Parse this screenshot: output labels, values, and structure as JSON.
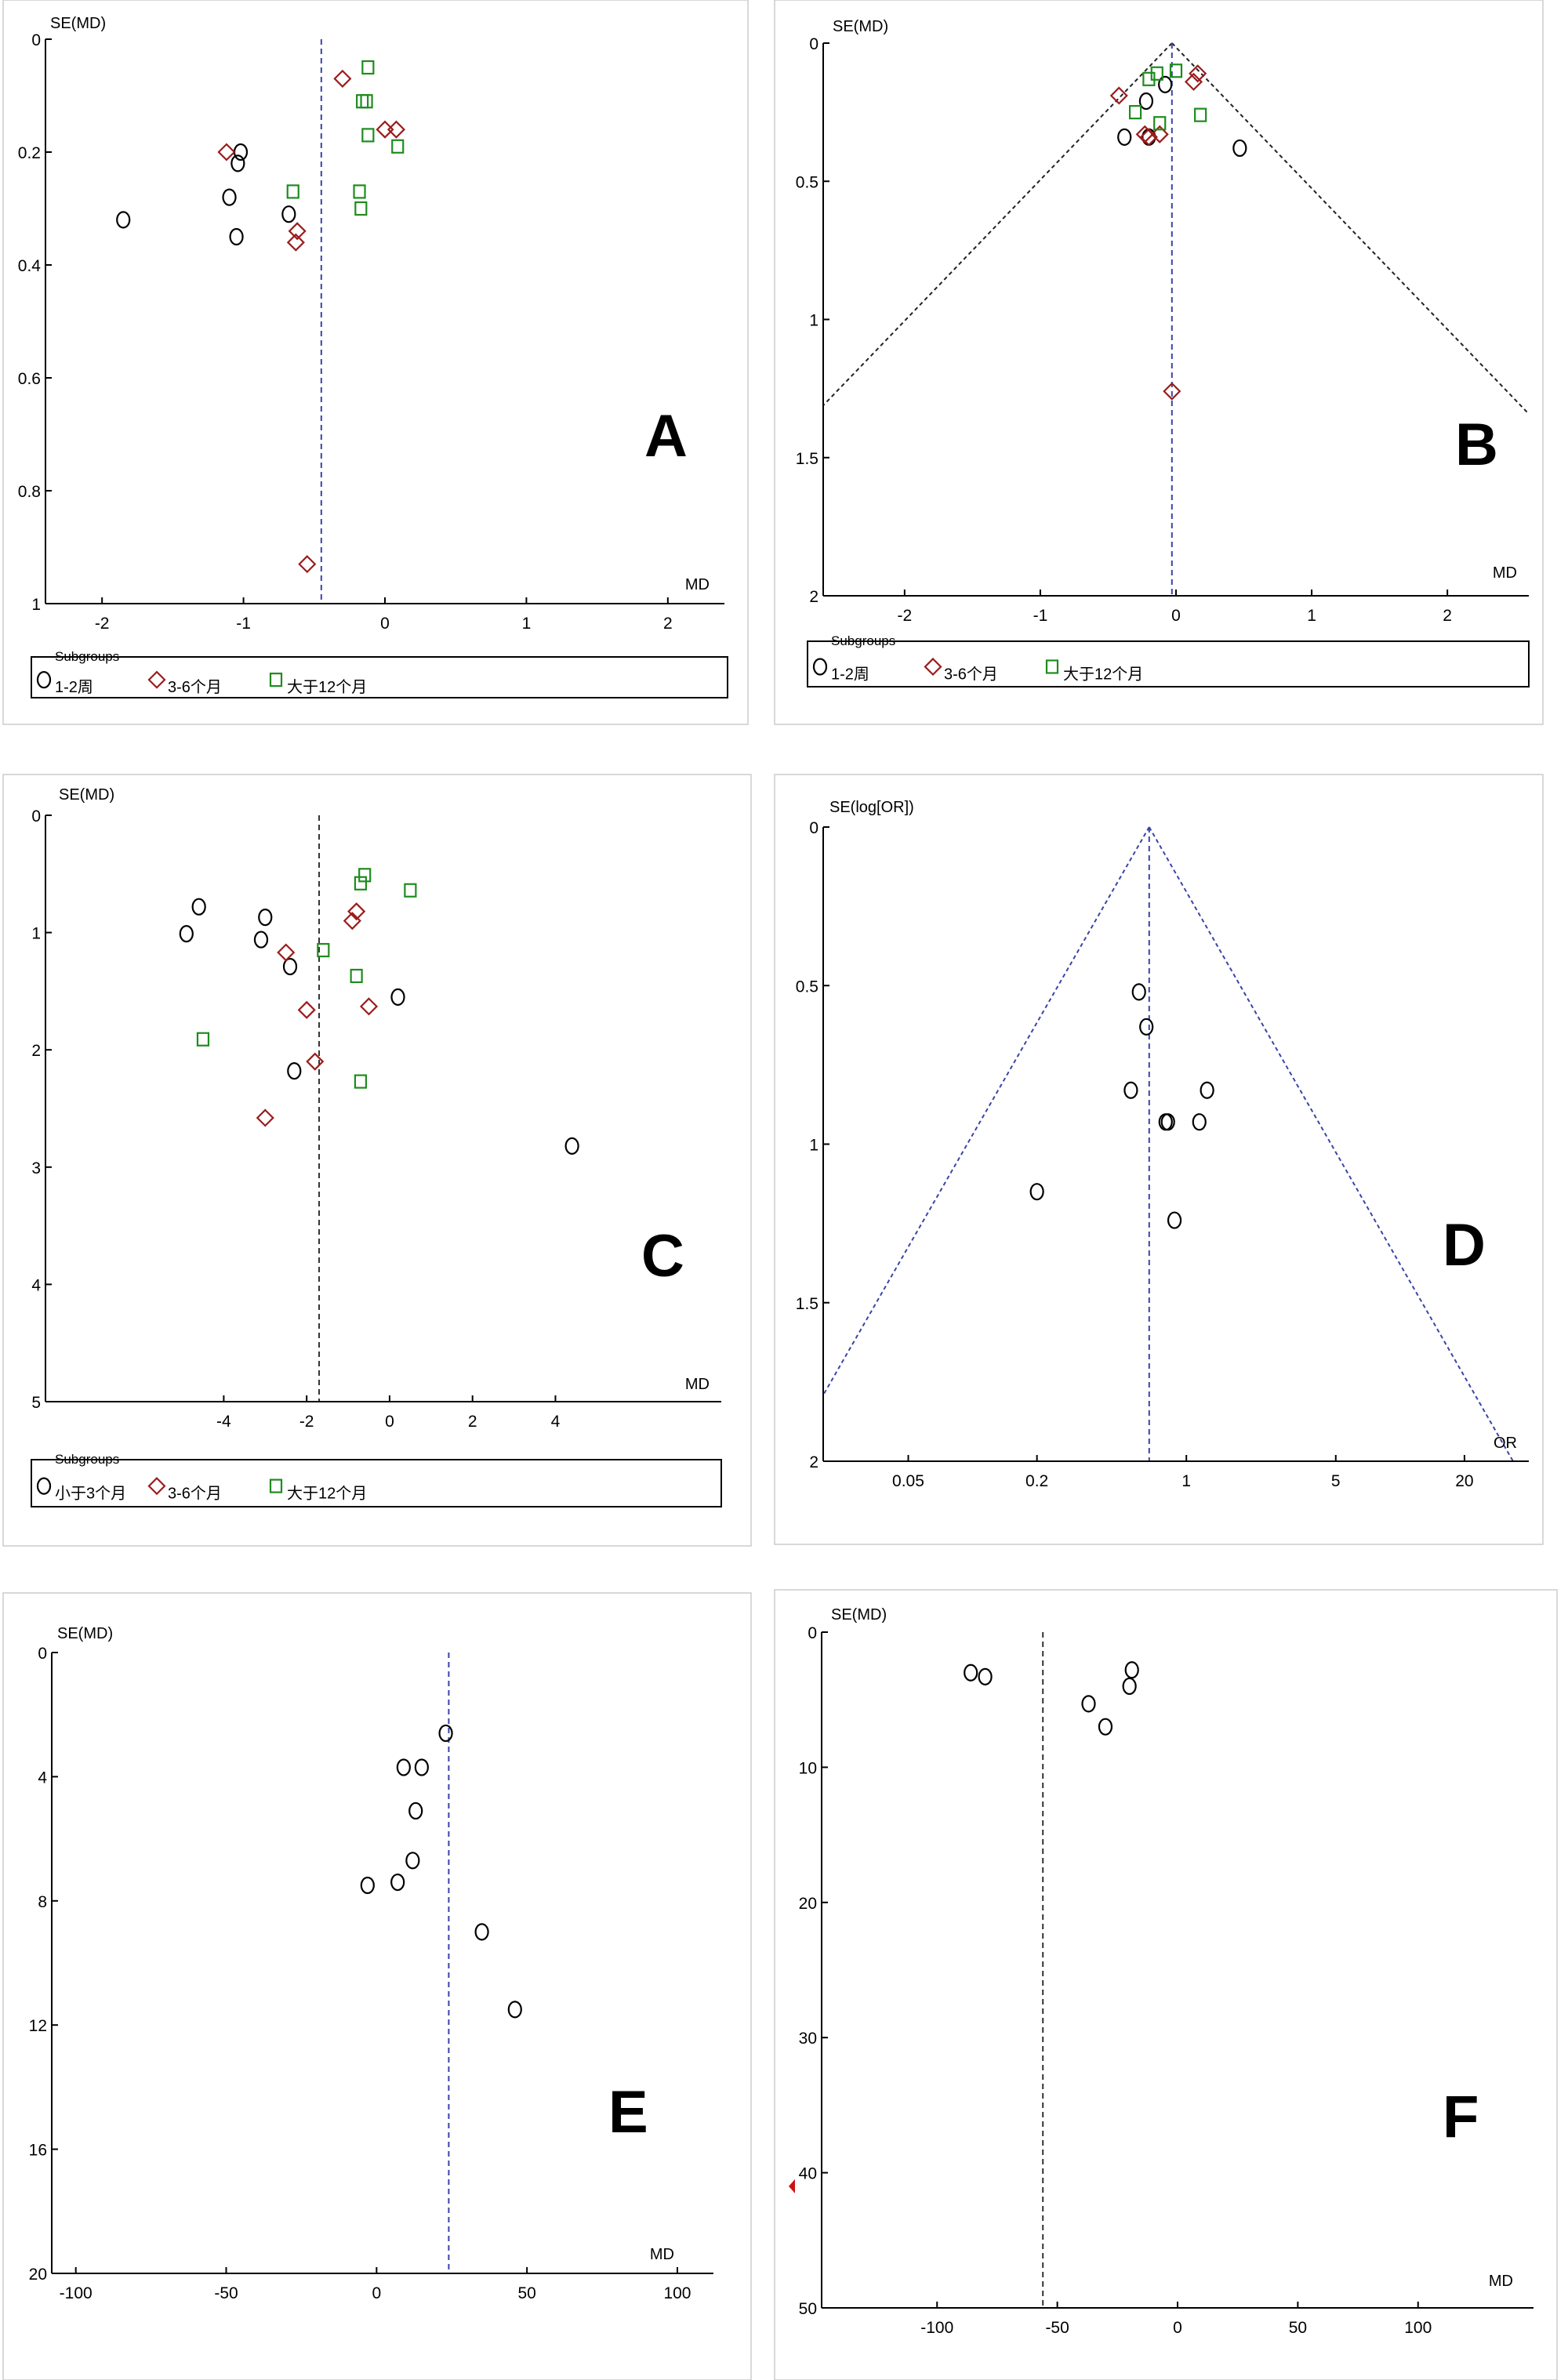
{
  "colors": {
    "subgroup1": "#000000",
    "subgroup2": "#9b1c1c",
    "subgroup3": "#1e8c1e",
    "reference_line": "#3a44a8",
    "funnel_line": "#222222",
    "panel_border": "#cccccc"
  },
  "chart_data": [
    {
      "panel": "A",
      "type": "scatter",
      "xlabel": "MD",
      "ylabel": "SE(MD)",
      "xlim": [
        -2.4,
        2.4
      ],
      "ylim": [
        0,
        1
      ],
      "y_inverted": true,
      "x_scale": "linear",
      "xticks": [
        -2,
        -1,
        0,
        1,
        2
      ],
      "yticks": [
        0,
        0.2,
        0.4,
        0.6,
        0.8,
        1
      ],
      "xtick_labels": [
        "-2",
        "-1",
        "0",
        "1",
        "2"
      ],
      "ytick_labels": [
        "0",
        "0.2",
        "0.4",
        "0.6",
        "0.8",
        "1"
      ],
      "reference_line": {
        "x": -0.45
      },
      "funnel": false,
      "legend": {
        "title": "Subgroups",
        "placement": "bottom",
        "entries": [
          "1-2周",
          "3-6个月",
          "大于12个月"
        ]
      },
      "series": [
        {
          "name": "1-2周",
          "marker": "circle",
          "color": "#000000",
          "points": [
            [
              -1.85,
              0.32
            ],
            [
              -1.02,
              0.2
            ],
            [
              -1.04,
              0.22
            ],
            [
              -1.1,
              0.28
            ],
            [
              -1.05,
              0.35
            ],
            [
              -0.68,
              0.31
            ]
          ]
        },
        {
          "name": "3-6个月",
          "marker": "diamond",
          "color": "#9b1c1c",
          "points": [
            [
              -0.3,
              0.07
            ],
            [
              -1.12,
              0.2
            ],
            [
              0.0,
              0.16
            ],
            [
              0.08,
              0.16
            ],
            [
              -0.62,
              0.34
            ],
            [
              -0.63,
              0.36
            ],
            [
              -0.55,
              0.93
            ]
          ]
        },
        {
          "name": "大于12个月",
          "marker": "square",
          "color": "#1e8c1e",
          "points": [
            [
              -0.12,
              0.05
            ],
            [
              -0.16,
              0.11
            ],
            [
              -0.13,
              0.11
            ],
            [
              -0.12,
              0.17
            ],
            [
              0.09,
              0.19
            ],
            [
              -0.65,
              0.27
            ],
            [
              -0.18,
              0.27
            ],
            [
              -0.17,
              0.3
            ]
          ]
        }
      ]
    },
    {
      "panel": "B",
      "type": "scatter",
      "xlabel": "MD",
      "ylabel": "SE(MD)",
      "xlim": [
        -2.6,
        2.6
      ],
      "ylim": [
        0,
        2
      ],
      "y_inverted": true,
      "x_scale": "linear",
      "xticks": [
        -2,
        -1,
        0,
        1,
        2
      ],
      "yticks": [
        0,
        0.5,
        1,
        1.5,
        2
      ],
      "xtick_labels": [
        "-2",
        "-1",
        "0",
        "1",
        "2"
      ],
      "ytick_labels": [
        "0",
        "0.5",
        "1",
        "1.5",
        "2"
      ],
      "reference_line": {
        "x": -0.03
      },
      "funnel": true,
      "legend": {
        "title": "Subgroups",
        "placement": "bottom",
        "entries": [
          "1-2周",
          "3-6个月",
          "大于12个月"
        ]
      },
      "series": [
        {
          "name": "1-2周",
          "marker": "circle",
          "color": "#000000",
          "points": [
            [
              -0.08,
              0.15
            ],
            [
              -0.22,
              0.21
            ],
            [
              -0.38,
              0.34
            ],
            [
              -0.2,
              0.34
            ],
            [
              0.47,
              0.38
            ]
          ]
        },
        {
          "name": "3-6个月",
          "marker": "diamond",
          "color": "#9b1c1c",
          "points": [
            [
              -0.42,
              0.19
            ],
            [
              0.16,
              0.11
            ],
            [
              0.13,
              0.14
            ],
            [
              -0.23,
              0.33
            ],
            [
              -0.2,
              0.34
            ],
            [
              -0.12,
              0.33
            ],
            [
              -0.03,
              1.26
            ]
          ]
        },
        {
          "name": "大于12个月",
          "marker": "square",
          "color": "#1e8c1e",
          "points": [
            [
              -0.14,
              0.11
            ],
            [
              0.0,
              0.1
            ],
            [
              -0.2,
              0.13
            ],
            [
              -0.3,
              0.25
            ],
            [
              -0.12,
              0.29
            ],
            [
              0.18,
              0.26
            ]
          ]
        }
      ]
    },
    {
      "panel": "C",
      "type": "scatter",
      "xlabel": "MD",
      "ylabel": "SE(MD)",
      "xlim": [
        -8.3,
        8
      ],
      "ylim": [
        0,
        5
      ],
      "y_inverted": true,
      "x_scale": "linear",
      "xticks": [
        -4,
        -2,
        0,
        2,
        4
      ],
      "yticks": [
        0,
        1,
        2,
        3,
        4,
        5
      ],
      "xtick_labels": [
        "-4",
        "-2",
        "0",
        "2",
        "4"
      ],
      "ytick_labels": [
        "0",
        "1",
        "2",
        "3",
        "4",
        "5"
      ],
      "reference_line": {
        "x": -1.7
      },
      "funnel": false,
      "legend": {
        "title": "Subgroups",
        "placement": "bottom",
        "entries": [
          "小于3个月",
          "3-6个月",
          "大于12个月"
        ]
      },
      "series": [
        {
          "name": "小于3个月",
          "marker": "circle",
          "color": "#000000",
          "points": [
            [
              -4.6,
              0.78
            ],
            [
              -3,
              0.87
            ],
            [
              -3.1,
              1.06
            ],
            [
              -4.9,
              1.01
            ],
            [
              -2.4,
              1.29
            ],
            [
              0.2,
              1.55
            ],
            [
              -2.3,
              2.18
            ],
            [
              4.4,
              2.82
            ]
          ]
        },
        {
          "name": "3-6个月",
          "marker": "diamond",
          "color": "#9b1c1c",
          "points": [
            [
              -0.8,
              0.82
            ],
            [
              -0.9,
              0.9
            ],
            [
              -2.5,
              1.17
            ],
            [
              -2,
              1.66
            ],
            [
              -0.5,
              1.63
            ],
            [
              -1.8,
              2.1
            ],
            [
              -3,
              2.58
            ]
          ]
        },
        {
          "name": "大于12个月",
          "marker": "square",
          "color": "#1e8c1e",
          "points": [
            [
              -0.6,
              0.51
            ],
            [
              -0.7,
              0.58
            ],
            [
              0.5,
              0.64
            ],
            [
              -1.6,
              1.15
            ],
            [
              -0.8,
              1.37
            ],
            [
              -4.5,
              1.91
            ],
            [
              -0.7,
              2.27
            ]
          ]
        }
      ]
    },
    {
      "panel": "D",
      "type": "scatter",
      "xlabel": "OR",
      "ylabel": "SE(log[OR])",
      "xlim": [
        0.02,
        40
      ],
      "ylim": [
        0,
        2
      ],
      "y_inverted": true,
      "x_scale": "log",
      "xticks": [
        0.05,
        0.2,
        1,
        5,
        20
      ],
      "yticks": [
        0,
        0.5,
        1,
        1.5,
        2
      ],
      "xtick_labels": [
        "0.05",
        "0.2",
        "1",
        "5",
        "20"
      ],
      "ytick_labels": [
        "0",
        "0.5",
        "1",
        "1.5",
        "2"
      ],
      "reference_line": {
        "x": 0.67
      },
      "funnel": true,
      "legend": null,
      "series": [
        {
          "name": "",
          "marker": "circle",
          "color": "#000000",
          "points": [
            [
              0.6,
              0.52
            ],
            [
              0.65,
              0.63
            ],
            [
              0.55,
              0.83
            ],
            [
              1.25,
              0.83
            ],
            [
              0.8,
              0.93
            ],
            [
              0.82,
              0.93
            ],
            [
              1.15,
              0.93
            ],
            [
              0.2,
              1.15
            ],
            [
              0.88,
              1.24
            ]
          ]
        }
      ]
    },
    {
      "panel": "E",
      "type": "scatter",
      "xlabel": "MD",
      "ylabel": "SE(MD)",
      "xlim": [
        -108,
        112
      ],
      "ylim": [
        0,
        20
      ],
      "y_inverted": true,
      "x_scale": "linear",
      "xticks": [
        -100,
        -50,
        0,
        50,
        100
      ],
      "yticks": [
        0,
        4,
        8,
        12,
        16,
        20
      ],
      "xtick_labels": [
        "-100",
        "-50",
        "0",
        "50",
        "100"
      ],
      "ytick_labels": [
        "0",
        "4",
        "8",
        "12",
        "16",
        "20"
      ],
      "reference_line": {
        "x": 24
      },
      "funnel": false,
      "legend": null,
      "series": [
        {
          "name": "",
          "marker": "circle",
          "color": "#000000",
          "points": [
            [
              23,
              2.6
            ],
            [
              9,
              3.7
            ],
            [
              15,
              3.7
            ],
            [
              13,
              5.1
            ],
            [
              12,
              6.7
            ],
            [
              -3,
              7.5
            ],
            [
              7,
              7.4
            ],
            [
              35,
              9
            ],
            [
              46,
              11.5
            ]
          ]
        }
      ]
    },
    {
      "panel": "F",
      "type": "scatter",
      "xlabel": "MD",
      "ylabel": "SE(MD)",
      "xlim": [
        -148,
        148
      ],
      "ylim": [
        0,
        50
      ],
      "y_inverted": true,
      "x_scale": "linear",
      "xticks": [
        -100,
        -50,
        0,
        50,
        100
      ],
      "yticks": [
        0,
        10,
        20,
        30,
        40,
        50
      ],
      "xtick_labels": [
        "-100",
        "-50",
        "0",
        "50",
        "100"
      ],
      "ytick_labels": [
        "0",
        "10",
        "20",
        "30",
        "40",
        "50"
      ],
      "reference_line": {
        "x": -56
      },
      "funnel": false,
      "legend": null,
      "series": [
        {
          "name": "",
          "marker": "circle",
          "color": "#000000",
          "points": [
            [
              -86,
              3
            ],
            [
              -80,
              3.3
            ],
            [
              -19,
              2.8
            ],
            [
              -20,
              4
            ],
            [
              -37,
              5.3
            ],
            [
              -30,
              7
            ]
          ]
        }
      ]
    }
  ]
}
